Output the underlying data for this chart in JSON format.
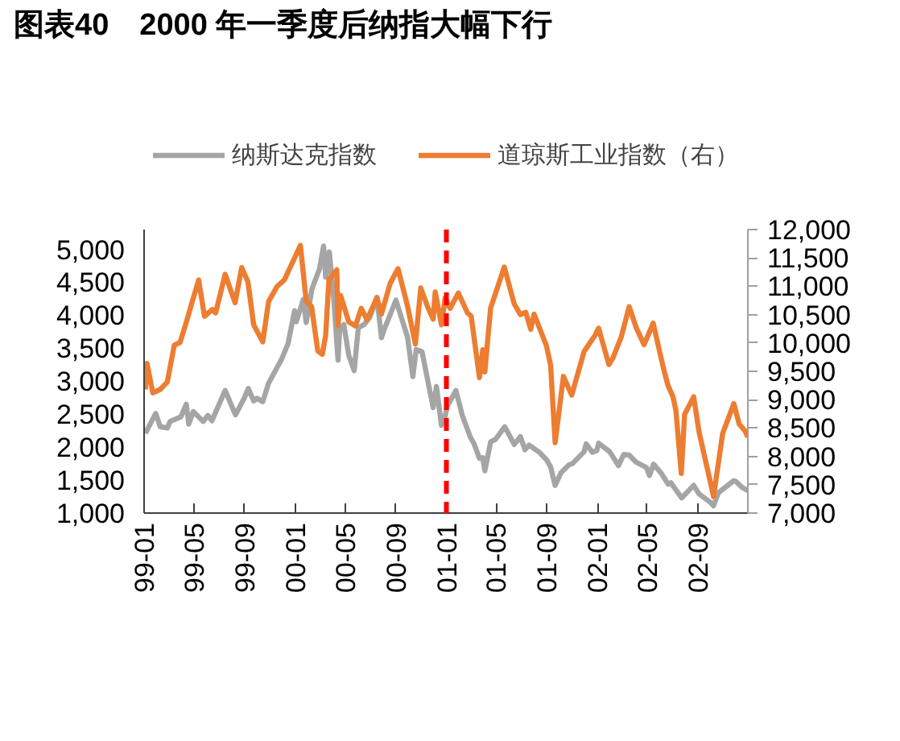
{
  "chart_data": {
    "type": "line",
    "title": "图表40　2000 年一季度后纳指大幅下行",
    "series": [
      {
        "name": "纳斯达克指数",
        "color": "#a5a5a5",
        "x": [
          "1999-01-04",
          "1999-01-29",
          "1999-02-09",
          "1999-02-26",
          "1999-03-05",
          "1999-03-31",
          "1999-04-13",
          "1999-04-19",
          "1999-04-30",
          "1999-05-24",
          "1999-06-04",
          "1999-06-14",
          "1999-07-16",
          "1999-08-10",
          "1999-08-31",
          "1999-09-10",
          "1999-09-23",
          "1999-10-01",
          "1999-10-15",
          "1999-10-29",
          "1999-11-30",
          "1999-12-15",
          "1999-12-31",
          "2000-01-04",
          "2000-01-21",
          "2000-01-28",
          "2000-02-11",
          "2000-02-29",
          "2000-03-10",
          "2000-03-15",
          "2000-03-24",
          "2000-04-04",
          "2000-04-14",
          "2000-04-18",
          "2000-04-28",
          "2000-05-10",
          "2000-05-23",
          "2000-06-02",
          "2000-06-16",
          "2000-06-30",
          "2000-07-17",
          "2000-07-28",
          "2000-08-04",
          "2000-09-01",
          "2000-09-29",
          "2000-10-12",
          "2000-10-20",
          "2000-11-03",
          "2000-11-30",
          "2000-12-08",
          "2000-12-20",
          "2000-12-29",
          "2001-01-03",
          "2001-01-24",
          "2001-02-09",
          "2001-02-28",
          "2001-03-09",
          "2001-03-22",
          "2001-03-30",
          "2001-04-04",
          "2001-04-18",
          "2001-04-30",
          "2001-05-22",
          "2001-06-04",
          "2001-06-14",
          "2001-06-29",
          "2001-07-10",
          "2001-07-20",
          "2001-08-14",
          "2001-08-31",
          "2001-09-10",
          "2001-09-21",
          "2001-10-05",
          "2001-10-24",
          "2001-11-02",
          "2001-11-30",
          "2001-12-05",
          "2001-12-20",
          "2001-12-31",
          "2002-01-04",
          "2002-01-31",
          "2002-02-21",
          "2002-03-06",
          "2002-03-19",
          "2002-04-05",
          "2002-04-30",
          "2002-05-07",
          "2002-05-17",
          "2002-06-05",
          "2002-06-21",
          "2002-06-28",
          "2002-07-08",
          "2002-07-24",
          "2002-08-22",
          "2002-09-04",
          "2002-09-30",
          "2002-10-09",
          "2002-10-21",
          "2002-11-27",
          "2002-12-02",
          "2002-12-17",
          "2002-12-31"
        ],
        "values": [
          2210,
          2510,
          2310,
          2290,
          2390,
          2460,
          2650,
          2350,
          2540,
          2390,
          2480,
          2400,
          2860,
          2490,
          2740,
          2890,
          2700,
          2740,
          2690,
          2970,
          3340,
          3570,
          4070,
          3900,
          4240,
          3890,
          4400,
          4700,
          5050,
          4580,
          4960,
          4220,
          3320,
          3790,
          3860,
          3390,
          3160,
          3810,
          3860,
          3970,
          4270,
          3660,
          3790,
          4230,
          3670,
          3070,
          3480,
          3450,
          2600,
          2920,
          2330,
          2470,
          2620,
          2860,
          2470,
          2150,
          2050,
          1830,
          1840,
          1640,
          2080,
          2120,
          2310,
          2160,
          2040,
          2160,
          1960,
          2030,
          1920,
          1810,
          1700,
          1420,
          1610,
          1730,
          1750,
          1930,
          2050,
          1920,
          1950,
          2060,
          1930,
          1720,
          1890,
          1880,
          1770,
          1690,
          1570,
          1740,
          1600,
          1440,
          1460,
          1370,
          1230,
          1420,
          1290,
          1170,
          1110,
          1310,
          1490,
          1480,
          1390,
          1340
        ]
      },
      {
        "name": "道琼斯工业指数（右）",
        "color": "#ed7d31",
        "axis": "y2",
        "x": [
          "1999-01-04",
          "1999-01-08",
          "1999-01-22",
          "1999-02-09",
          "1999-02-26",
          "1999-03-15",
          "1999-03-29",
          "1999-04-12",
          "1999-04-30",
          "1999-05-13",
          "1999-05-27",
          "1999-06-15",
          "1999-06-23",
          "1999-07-16",
          "1999-08-09",
          "1999-08-25",
          "1999-09-09",
          "1999-09-23",
          "1999-10-15",
          "1999-10-29",
          "1999-11-19",
          "1999-12-06",
          "1999-12-31",
          "2000-01-14",
          "2000-01-28",
          "2000-02-10",
          "2000-02-25",
          "2000-03-07",
          "2000-03-15",
          "2000-03-23",
          "2000-04-11",
          "2000-04-14",
          "2000-04-20",
          "2000-05-10",
          "2000-05-26",
          "2000-06-09",
          "2000-06-23",
          "2000-07-17",
          "2000-07-28",
          "2000-08-18",
          "2000-09-06",
          "2000-09-29",
          "2000-10-18",
          "2000-10-31",
          "2000-11-17",
          "2000-11-30",
          "2000-12-05",
          "2000-12-20",
          "2000-12-29",
          "2001-01-10",
          "2001-01-30",
          "2001-02-21",
          "2001-03-02",
          "2001-03-22",
          "2001-03-30",
          "2001-04-04",
          "2001-04-18",
          "2001-05-01",
          "2001-05-21",
          "2001-06-14",
          "2001-06-29",
          "2001-07-12",
          "2001-07-24",
          "2001-08-01",
          "2001-08-31",
          "2001-09-10",
          "2001-09-21",
          "2001-10-11",
          "2001-10-31",
          "2001-11-30",
          "2001-12-27",
          "2002-01-04",
          "2002-01-29",
          "2002-02-08",
          "2002-02-28",
          "2002-03-19",
          "2002-04-05",
          "2002-04-24",
          "2002-05-16",
          "2002-06-11",
          "2002-06-21",
          "2002-07-03",
          "2002-07-10",
          "2002-07-23",
          "2002-07-31",
          "2002-08-22",
          "2002-09-04",
          "2002-09-30",
          "2002-10-09",
          "2002-10-31",
          "2002-11-27",
          "2002-12-10",
          "2002-12-24",
          "2002-12-31"
        ],
        "values": [
          9180,
          9640,
          9120,
          9180,
          9310,
          9960,
          10010,
          10340,
          10790,
          11110,
          10470,
          10590,
          10530,
          11210,
          10710,
          11330,
          11080,
          10320,
          10020,
          10730,
          11000,
          11110,
          11500,
          11720,
          10740,
          10640,
          9860,
          9800,
          10130,
          11120,
          11290,
          10310,
          10840,
          10370,
          10300,
          10610,
          10410,
          10800,
          10510,
          11050,
          11310,
          10650,
          9980,
          10970,
          10630,
          10420,
          10900,
          10320,
          10790,
          10610,
          10880,
          10530,
          10470,
          9390,
          9880,
          9490,
          10620,
          10900,
          11340,
          10690,
          10500,
          10540,
          10240,
          10510,
          9950,
          9610,
          8240,
          9410,
          9080,
          9850,
          10140,
          10260,
          9620,
          9740,
          10110,
          10640,
          10270,
          9970,
          10350,
          9520,
          9250,
          9050,
          8810,
          7700,
          8740,
          9050,
          8430,
          7590,
          7290,
          8400,
          8930,
          8570,
          8450,
          8340
        ]
      }
    ],
    "xlim": [
      "1999-01-01",
      "2002-12-31"
    ],
    "xticks": [
      {
        "value": "1999-01-01",
        "label": "99-01"
      },
      {
        "value": "1999-05-01",
        "label": "99-05"
      },
      {
        "value": "1999-09-01",
        "label": "99-09"
      },
      {
        "value": "2000-01-01",
        "label": "00-01"
      },
      {
        "value": "2000-05-01",
        "label": "00-05"
      },
      {
        "value": "2000-09-01",
        "label": "00-09"
      },
      {
        "value": "2001-01-01",
        "label": "01-01"
      },
      {
        "value": "2001-05-01",
        "label": "01-05"
      },
      {
        "value": "2001-09-01",
        "label": "01-09"
      },
      {
        "value": "2002-01-01",
        "label": "02-01"
      },
      {
        "value": "2002-05-01",
        "label": "02-05"
      },
      {
        "value": "2002-09-01",
        "label": "02-09"
      }
    ],
    "ylim": [
      1000,
      5300
    ],
    "yticks": [
      {
        "value": 1000,
        "label": "1,000"
      },
      {
        "value": 1500,
        "label": "1,500"
      },
      {
        "value": 2000,
        "label": "2,000"
      },
      {
        "value": 2500,
        "label": "2,500"
      },
      {
        "value": 3000,
        "label": "3,000"
      },
      {
        "value": 3500,
        "label": "3,500"
      },
      {
        "value": 4000,
        "label": "4,000"
      },
      {
        "value": 4500,
        "label": "4,500"
      },
      {
        "value": 5000,
        "label": "5,000"
      }
    ],
    "y2lim": [
      7000,
      12000
    ],
    "y2ticks": [
      {
        "value": 7000,
        "label": "7,000"
      },
      {
        "value": 7500,
        "label": "7,500"
      },
      {
        "value": 8000,
        "label": "8,000"
      },
      {
        "value": 8500,
        "label": "8,500"
      },
      {
        "value": 9000,
        "label": "9,000"
      },
      {
        "value": 9500,
        "label": "9,500"
      },
      {
        "value": 10000,
        "label": "10,000"
      },
      {
        "value": 10500,
        "label": "10,500"
      },
      {
        "value": 11000,
        "label": "11,000"
      },
      {
        "value": 11500,
        "label": "11,500"
      },
      {
        "value": 12000,
        "label": "12,000"
      }
    ],
    "ref_lines": [
      {
        "axis": "x",
        "value": "2001-01-01",
        "color": "#ff0000",
        "line_style": "dashed"
      }
    ],
    "legend": "top",
    "grid": false,
    "line_style": "solid"
  }
}
